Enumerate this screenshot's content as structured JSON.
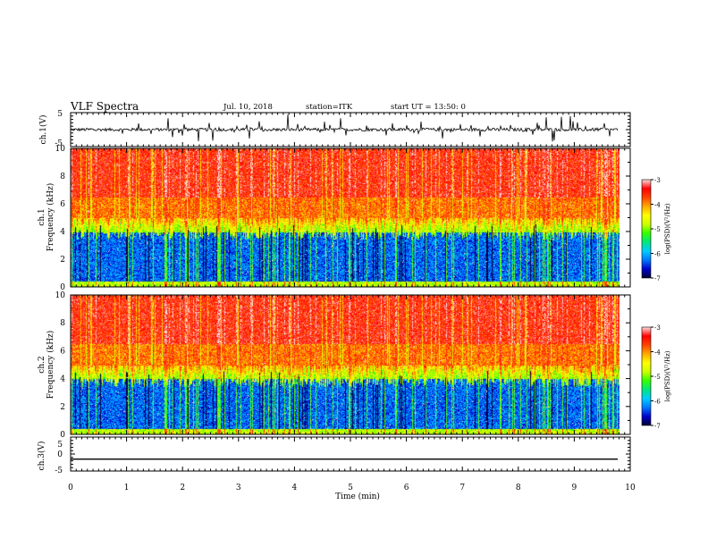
{
  "header": {
    "title": "VLF Spectra",
    "date": "Jul. 10, 2018",
    "station": "station=ITK",
    "start_time": "start UT = 13:50: 0"
  },
  "chart_data": [
    {
      "type": "line",
      "name": "ch1-waveform",
      "ylabel": "ch.1(V)",
      "ylim": [
        -5,
        5
      ],
      "yticks": [
        "5",
        "-5"
      ],
      "xlim": [
        0,
        10
      ],
      "baseline": 0,
      "spike_amplitude_max": 4.8
    },
    {
      "type": "heatmap",
      "name": "ch1-spectrogram",
      "ylabel_line1": "ch.1",
      "ylabel_line2": "Frequency (kHz)",
      "ylim": [
        0,
        10
      ],
      "yticks": [
        "0",
        "2",
        "4",
        "6",
        "8",
        "10"
      ],
      "xlim": [
        0,
        9.8
      ],
      "colorbar": {
        "label": "log(PSD)(V²/Hz)",
        "range": [
          -7,
          -3
        ],
        "ticks": [
          "-3",
          "-4",
          "-5",
          "-6",
          "-7"
        ]
      },
      "bands_khz": [
        {
          "from": 0,
          "to": 0.4,
          "level": -4.8
        },
        {
          "from": 0.4,
          "to": 4.0,
          "level": -6.3
        },
        {
          "from": 4.0,
          "to": 5.0,
          "level": -5.0
        },
        {
          "from": 5.0,
          "to": 6.5,
          "level": -3.9
        },
        {
          "from": 6.5,
          "to": 10,
          "level": -3.5
        }
      ]
    },
    {
      "type": "heatmap",
      "name": "ch2-spectrogram",
      "ylabel_line1": "ch.2",
      "ylabel_line2": "Frequency (kHz)",
      "ylim": [
        0,
        10
      ],
      "yticks": [
        "0",
        "2",
        "4",
        "6",
        "8",
        "10"
      ],
      "xlim": [
        0,
        9.8
      ],
      "colorbar": {
        "label": "log(PSD)(V²/Hz)",
        "range": [
          -7,
          -3
        ],
        "ticks": [
          "-3",
          "-4",
          "-5",
          "-6",
          "-7"
        ]
      },
      "bands_khz": [
        {
          "from": 0,
          "to": 0.4,
          "level": -4.8
        },
        {
          "from": 0.4,
          "to": 4.0,
          "level": -6.3
        },
        {
          "from": 4.0,
          "to": 5.0,
          "level": -5.0
        },
        {
          "from": 5.0,
          "to": 6.5,
          "level": -3.9
        },
        {
          "from": 6.5,
          "to": 10,
          "level": -3.5
        }
      ]
    },
    {
      "type": "line",
      "name": "ch3-waveform",
      "ylabel": "ch.3(V)",
      "ylim": [
        -5,
        5
      ],
      "yticks": [
        "5",
        "0",
        "-5"
      ],
      "xlim": [
        0,
        10
      ],
      "baseline": -1.5
    }
  ],
  "x_axis": {
    "label": "Time (min)",
    "ticks": [
      "0",
      "1",
      "2",
      "3",
      "4",
      "5",
      "6",
      "7",
      "8",
      "9",
      "10"
    ]
  },
  "colormap": [
    "#000033",
    "#0000cc",
    "#0077ff",
    "#00ccff",
    "#00e680",
    "#33ff00",
    "#ccff00",
    "#ffff00",
    "#ffaa00",
    "#ff4400",
    "#ff0000",
    "#ffdddd"
  ]
}
